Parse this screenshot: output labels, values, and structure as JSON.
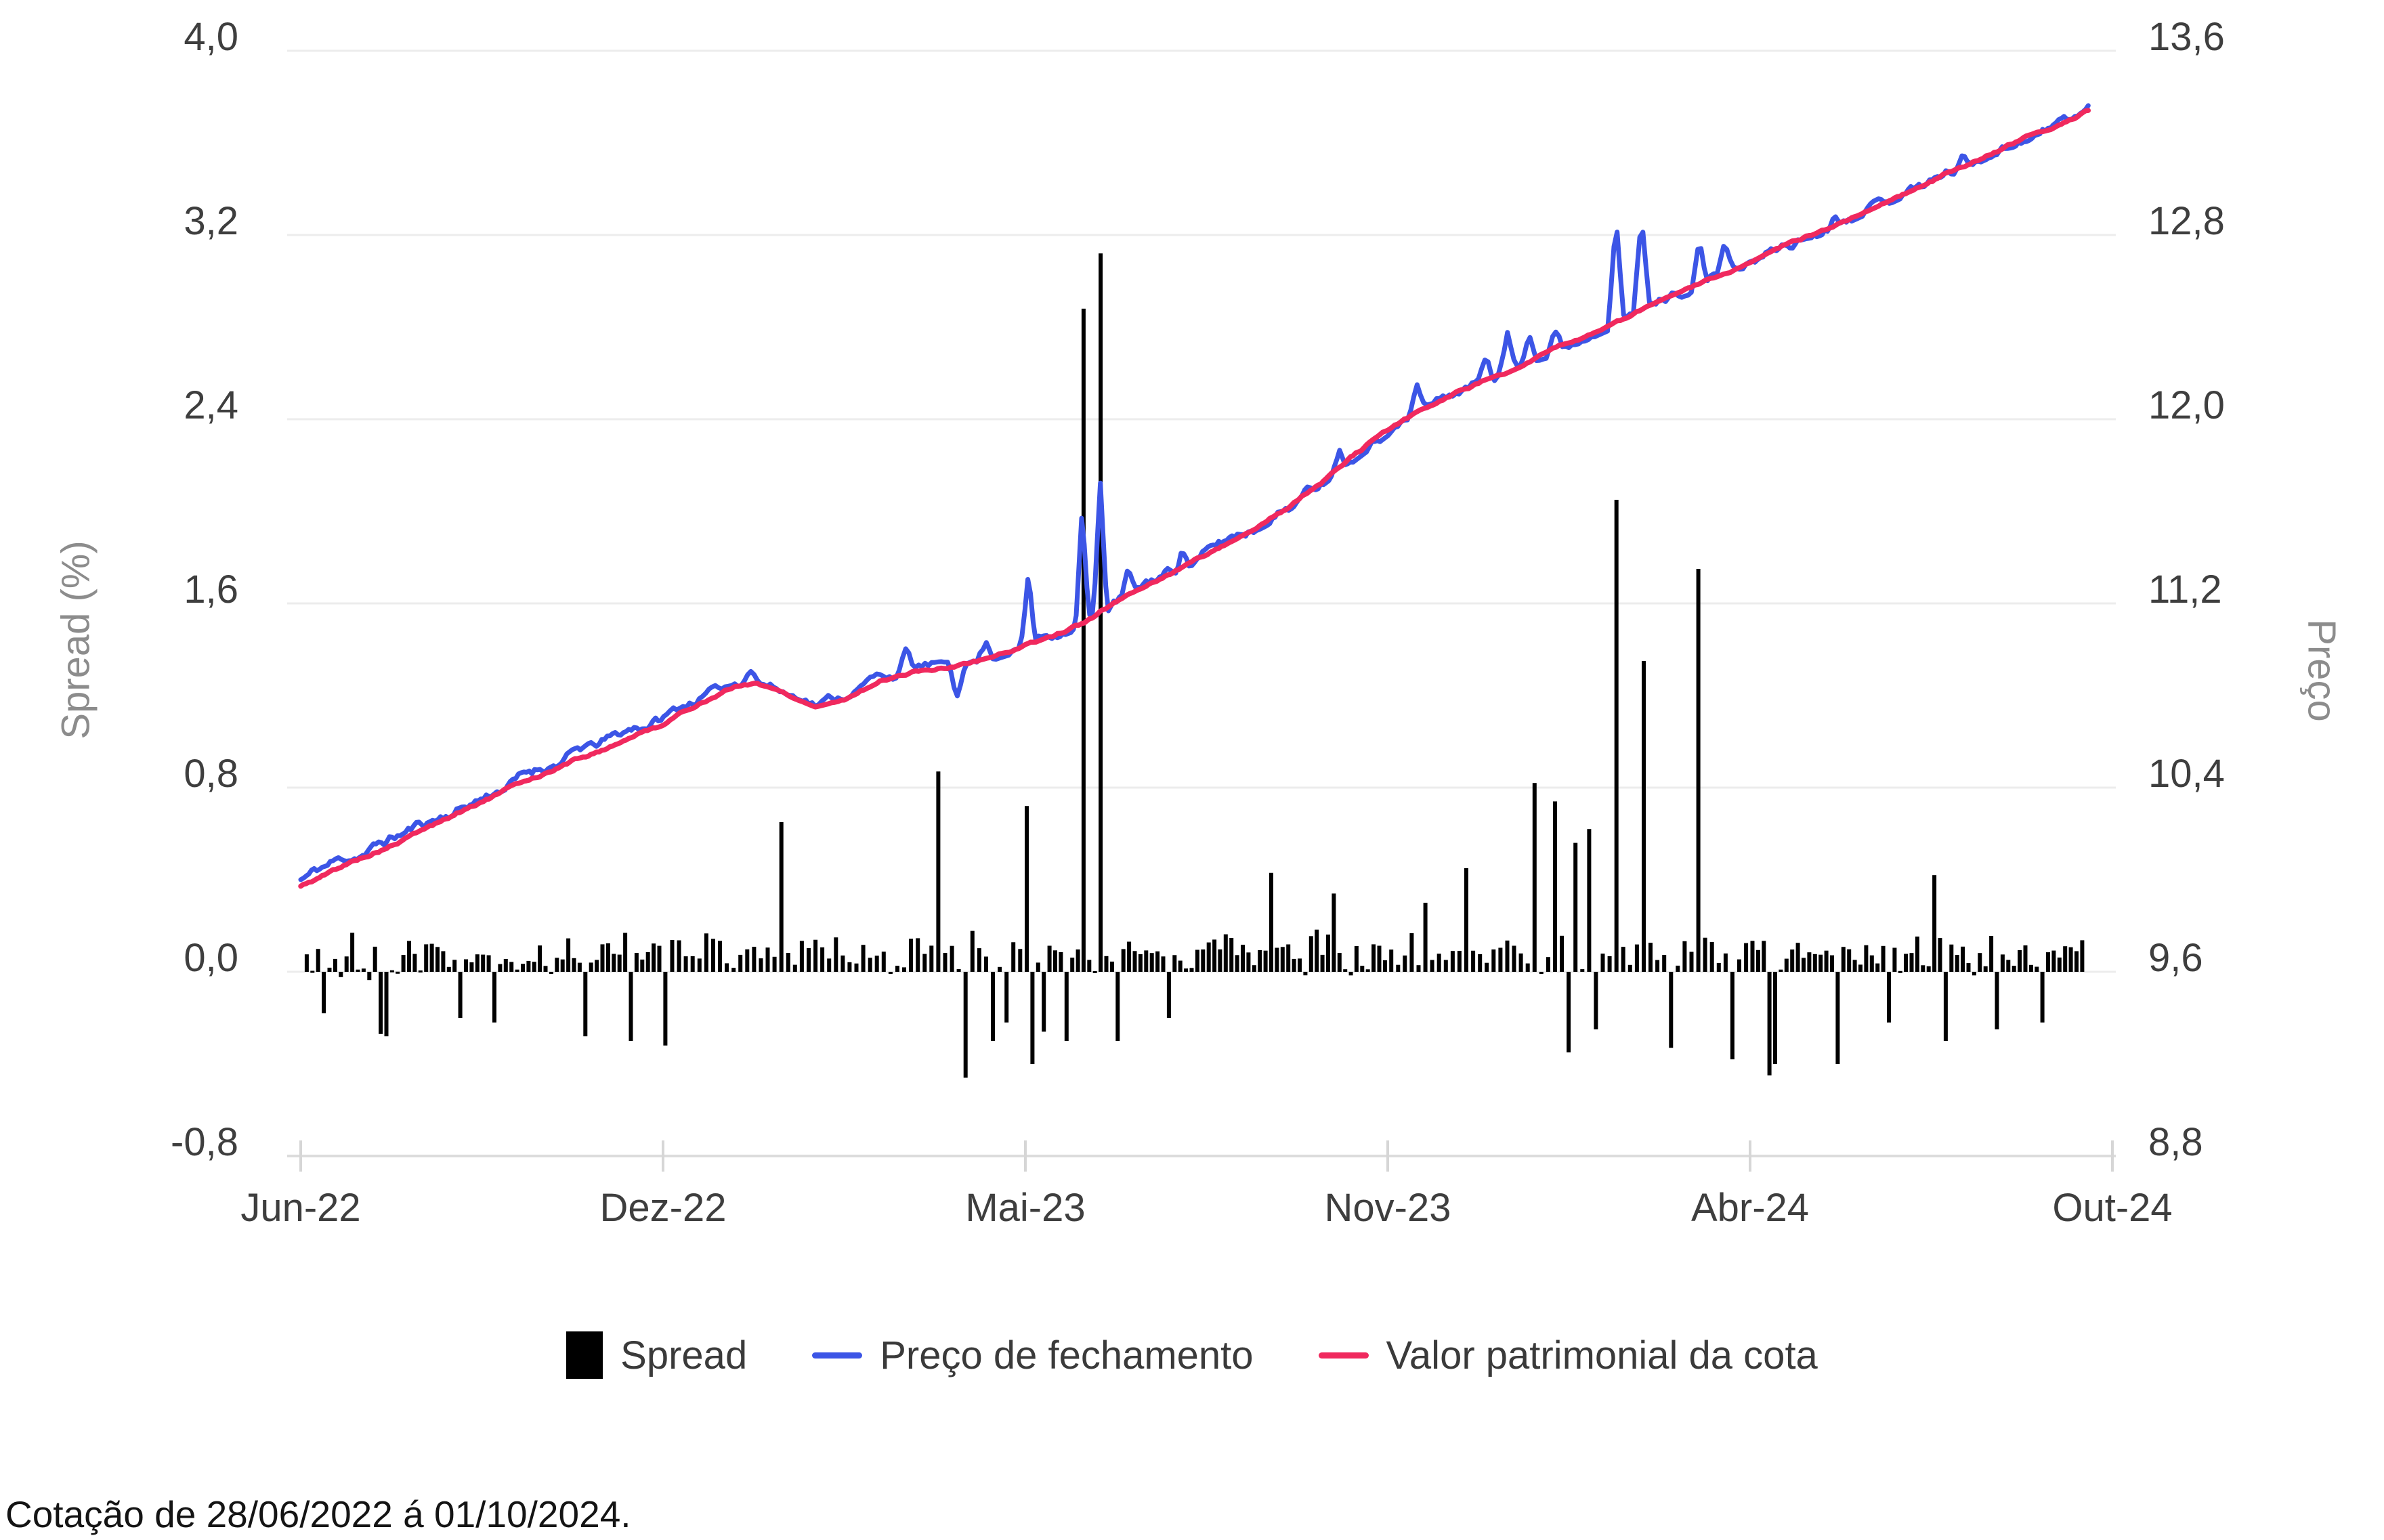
{
  "chart_data": {
    "type": "combo",
    "title": "",
    "x_axis": {
      "tick_labels": [
        "Jun-22",
        "Dez-22",
        "Mai-23",
        "Nov-23",
        "Abr-24",
        "Out-24"
      ],
      "tick_months": [
        0,
        6,
        11,
        17,
        22,
        28
      ]
    },
    "left_axis": {
      "label": "Spread (%)",
      "tick_labels": [
        "4,0",
        "3,2",
        "2,4",
        "1,6",
        "0,8",
        "0,0",
        "-0,8"
      ],
      "min": -0.8,
      "max": 4.0,
      "step": 0.8
    },
    "right_axis": {
      "label": "Preço",
      "tick_labels": [
        "13,6",
        "12,8",
        "12,0",
        "11,2",
        "10,4",
        "9,6",
        "8,8"
      ],
      "min": 8.8,
      "max": 13.6,
      "step": 0.8
    },
    "grid_color": "#ececec",
    "axis_line_color": "#dcdcdc",
    "legend": [
      {
        "label": "Spread",
        "swatch": "bar",
        "color": "#000000"
      },
      {
        "label": "Preço de fechamento",
        "swatch": "line",
        "color": "#3C55E6"
      },
      {
        "label": "Valor patrimonial da cota",
        "swatch": "line",
        "color": "#F0295E"
      }
    ],
    "series": {
      "spread_bars": {
        "name": "Spread",
        "axis": "left",
        "color": "#000000",
        "count": 292,
        "m_start": 0.1,
        "m_end": 27.5,
        "noise": {
          "seed": 20,
          "amp": 0.13,
          "mean": 0.055,
          "ramp": 0.03,
          "clamp_min": -0.3,
          "clamp_max": 0.38
        },
        "outliers": [
          [
            0.35,
            -0.18
          ],
          [
            1.3,
            -0.27
          ],
          [
            1.45,
            -0.28
          ],
          [
            2.6,
            -0.2
          ],
          [
            3.2,
            -0.22
          ],
          [
            4.7,
            -0.28
          ],
          [
            5.5,
            -0.3
          ],
          [
            6.0,
            -0.32
          ],
          [
            7.62,
            0.65
          ],
          [
            9.79,
            0.87
          ],
          [
            10.14,
            -0.46
          ],
          [
            10.55,
            -0.3
          ],
          [
            10.7,
            -0.22
          ],
          [
            11.01,
            0.72
          ],
          [
            11.15,
            -0.4
          ],
          [
            11.3,
            -0.26
          ],
          [
            11.7,
            -0.3
          ],
          [
            11.94,
            2.88
          ],
          [
            12.24,
            3.12
          ],
          [
            12.5,
            -0.3
          ],
          [
            13.4,
            -0.2
          ],
          [
            15.1,
            0.43
          ],
          [
            16.1,
            0.34
          ],
          [
            17.5,
            0.3
          ],
          [
            18.06,
            0.45
          ],
          [
            19.05,
            0.82
          ],
          [
            19.35,
            0.74
          ],
          [
            19.55,
            0.56
          ],
          [
            19.45,
            -0.35
          ],
          [
            19.8,
            0.62
          ],
          [
            19.9,
            -0.25
          ],
          [
            20.15,
            2.05
          ],
          [
            20.5,
            1.35
          ],
          [
            20.9,
            -0.33
          ],
          [
            21.3,
            1.75
          ],
          [
            21.75,
            -0.38
          ],
          [
            22.3,
            -0.45
          ],
          [
            22.45,
            -0.4
          ],
          [
            23.45,
            -0.4
          ],
          [
            24.3,
            -0.22
          ],
          [
            25.05,
            0.42
          ],
          [
            25.25,
            -0.3
          ],
          [
            26.1,
            -0.25
          ],
          [
            26.8,
            -0.22
          ]
        ]
      },
      "valor_patrimonial": {
        "name": "Valor patrimonial da cota",
        "axis": "right",
        "color": "#F0295E",
        "anchors": [
          [
            0,
            9.97
          ],
          [
            0.5,
            10.03
          ],
          [
            1,
            10.09
          ],
          [
            1.5,
            10.15
          ],
          [
            2,
            10.21
          ],
          [
            2.5,
            10.27
          ],
          [
            3,
            10.34
          ],
          [
            3.5,
            10.4
          ],
          [
            4,
            10.46
          ],
          [
            4.5,
            10.52
          ],
          [
            5,
            10.57
          ],
          [
            5.5,
            10.63
          ],
          [
            6,
            10.68
          ],
          [
            6.5,
            10.77
          ],
          [
            7,
            10.84
          ],
          [
            7.3,
            10.86
          ],
          [
            7.7,
            10.81
          ],
          [
            8.1,
            10.76
          ],
          [
            8.5,
            10.79
          ],
          [
            9,
            10.87
          ],
          [
            9.5,
            10.91
          ],
          [
            10,
            10.93
          ],
          [
            10.5,
            10.97
          ],
          [
            11,
            11.02
          ],
          [
            11.5,
            11.07
          ],
          [
            12,
            11.12
          ],
          [
            12.5,
            11.2
          ],
          [
            13,
            11.28
          ],
          [
            13.5,
            11.35
          ],
          [
            14,
            11.42
          ],
          [
            14.5,
            11.49
          ],
          [
            15,
            11.56
          ],
          [
            15.5,
            11.65
          ],
          [
            16,
            11.75
          ],
          [
            16.5,
            11.85
          ],
          [
            17,
            11.95
          ],
          [
            17.5,
            12.04
          ],
          [
            18,
            12.12
          ],
          [
            18.5,
            12.19
          ],
          [
            19,
            12.26
          ],
          [
            19.5,
            12.33
          ],
          [
            20,
            12.4
          ],
          [
            20.5,
            12.47
          ],
          [
            21,
            12.54
          ],
          [
            21.5,
            12.61
          ],
          [
            22,
            12.67
          ],
          [
            22.5,
            12.74
          ],
          [
            23,
            12.8
          ],
          [
            23.5,
            12.86
          ],
          [
            24,
            12.92
          ],
          [
            24.5,
            12.98
          ],
          [
            25,
            13.04
          ],
          [
            25.5,
            13.1
          ],
          [
            26,
            13.16
          ],
          [
            26.5,
            13.22
          ],
          [
            27,
            13.27
          ],
          [
            27.6,
            13.34
          ]
        ],
        "noise": {
          "seed": 5,
          "amp": 0.01
        }
      },
      "preco_fechamento": {
        "name": "Preço de fechamento",
        "axis": "right",
        "color": "#3C55E6",
        "base": "valor_patrimonial",
        "bias": [
          [
            0,
            0.03
          ],
          [
            7,
            0.02
          ],
          [
            9,
            0.01
          ],
          [
            10,
            0.0
          ],
          [
            28,
            0.0
          ]
        ],
        "noise": {
          "seed": 11,
          "amp": 0.022
        },
        "spike_width": 0.11,
        "spikes": [
          [
            7.2,
            0.06
          ],
          [
            9.35,
            0.09
          ],
          [
            10.05,
            -0.14
          ],
          [
            10.45,
            0.07
          ],
          [
            11.05,
            0.3
          ],
          [
            11.94,
            0.5
          ],
          [
            12.24,
            0.58
          ],
          [
            12.7,
            0.1
          ],
          [
            13.6,
            0.08
          ],
          [
            16.2,
            0.1
          ],
          [
            17.4,
            0.12
          ],
          [
            18.35,
            0.12
          ],
          [
            18.65,
            0.16
          ],
          [
            18.95,
            0.14
          ],
          [
            19.3,
            0.1
          ],
          [
            20.15,
            0.48
          ],
          [
            20.5,
            0.4
          ],
          [
            21.3,
            0.2
          ],
          [
            21.65,
            0.15
          ],
          [
            23.4,
            0.06
          ],
          [
            25.5,
            0.06
          ]
        ]
      }
    },
    "footnote": "Cotação de 28/06/2022 á 01/10/2024."
  }
}
